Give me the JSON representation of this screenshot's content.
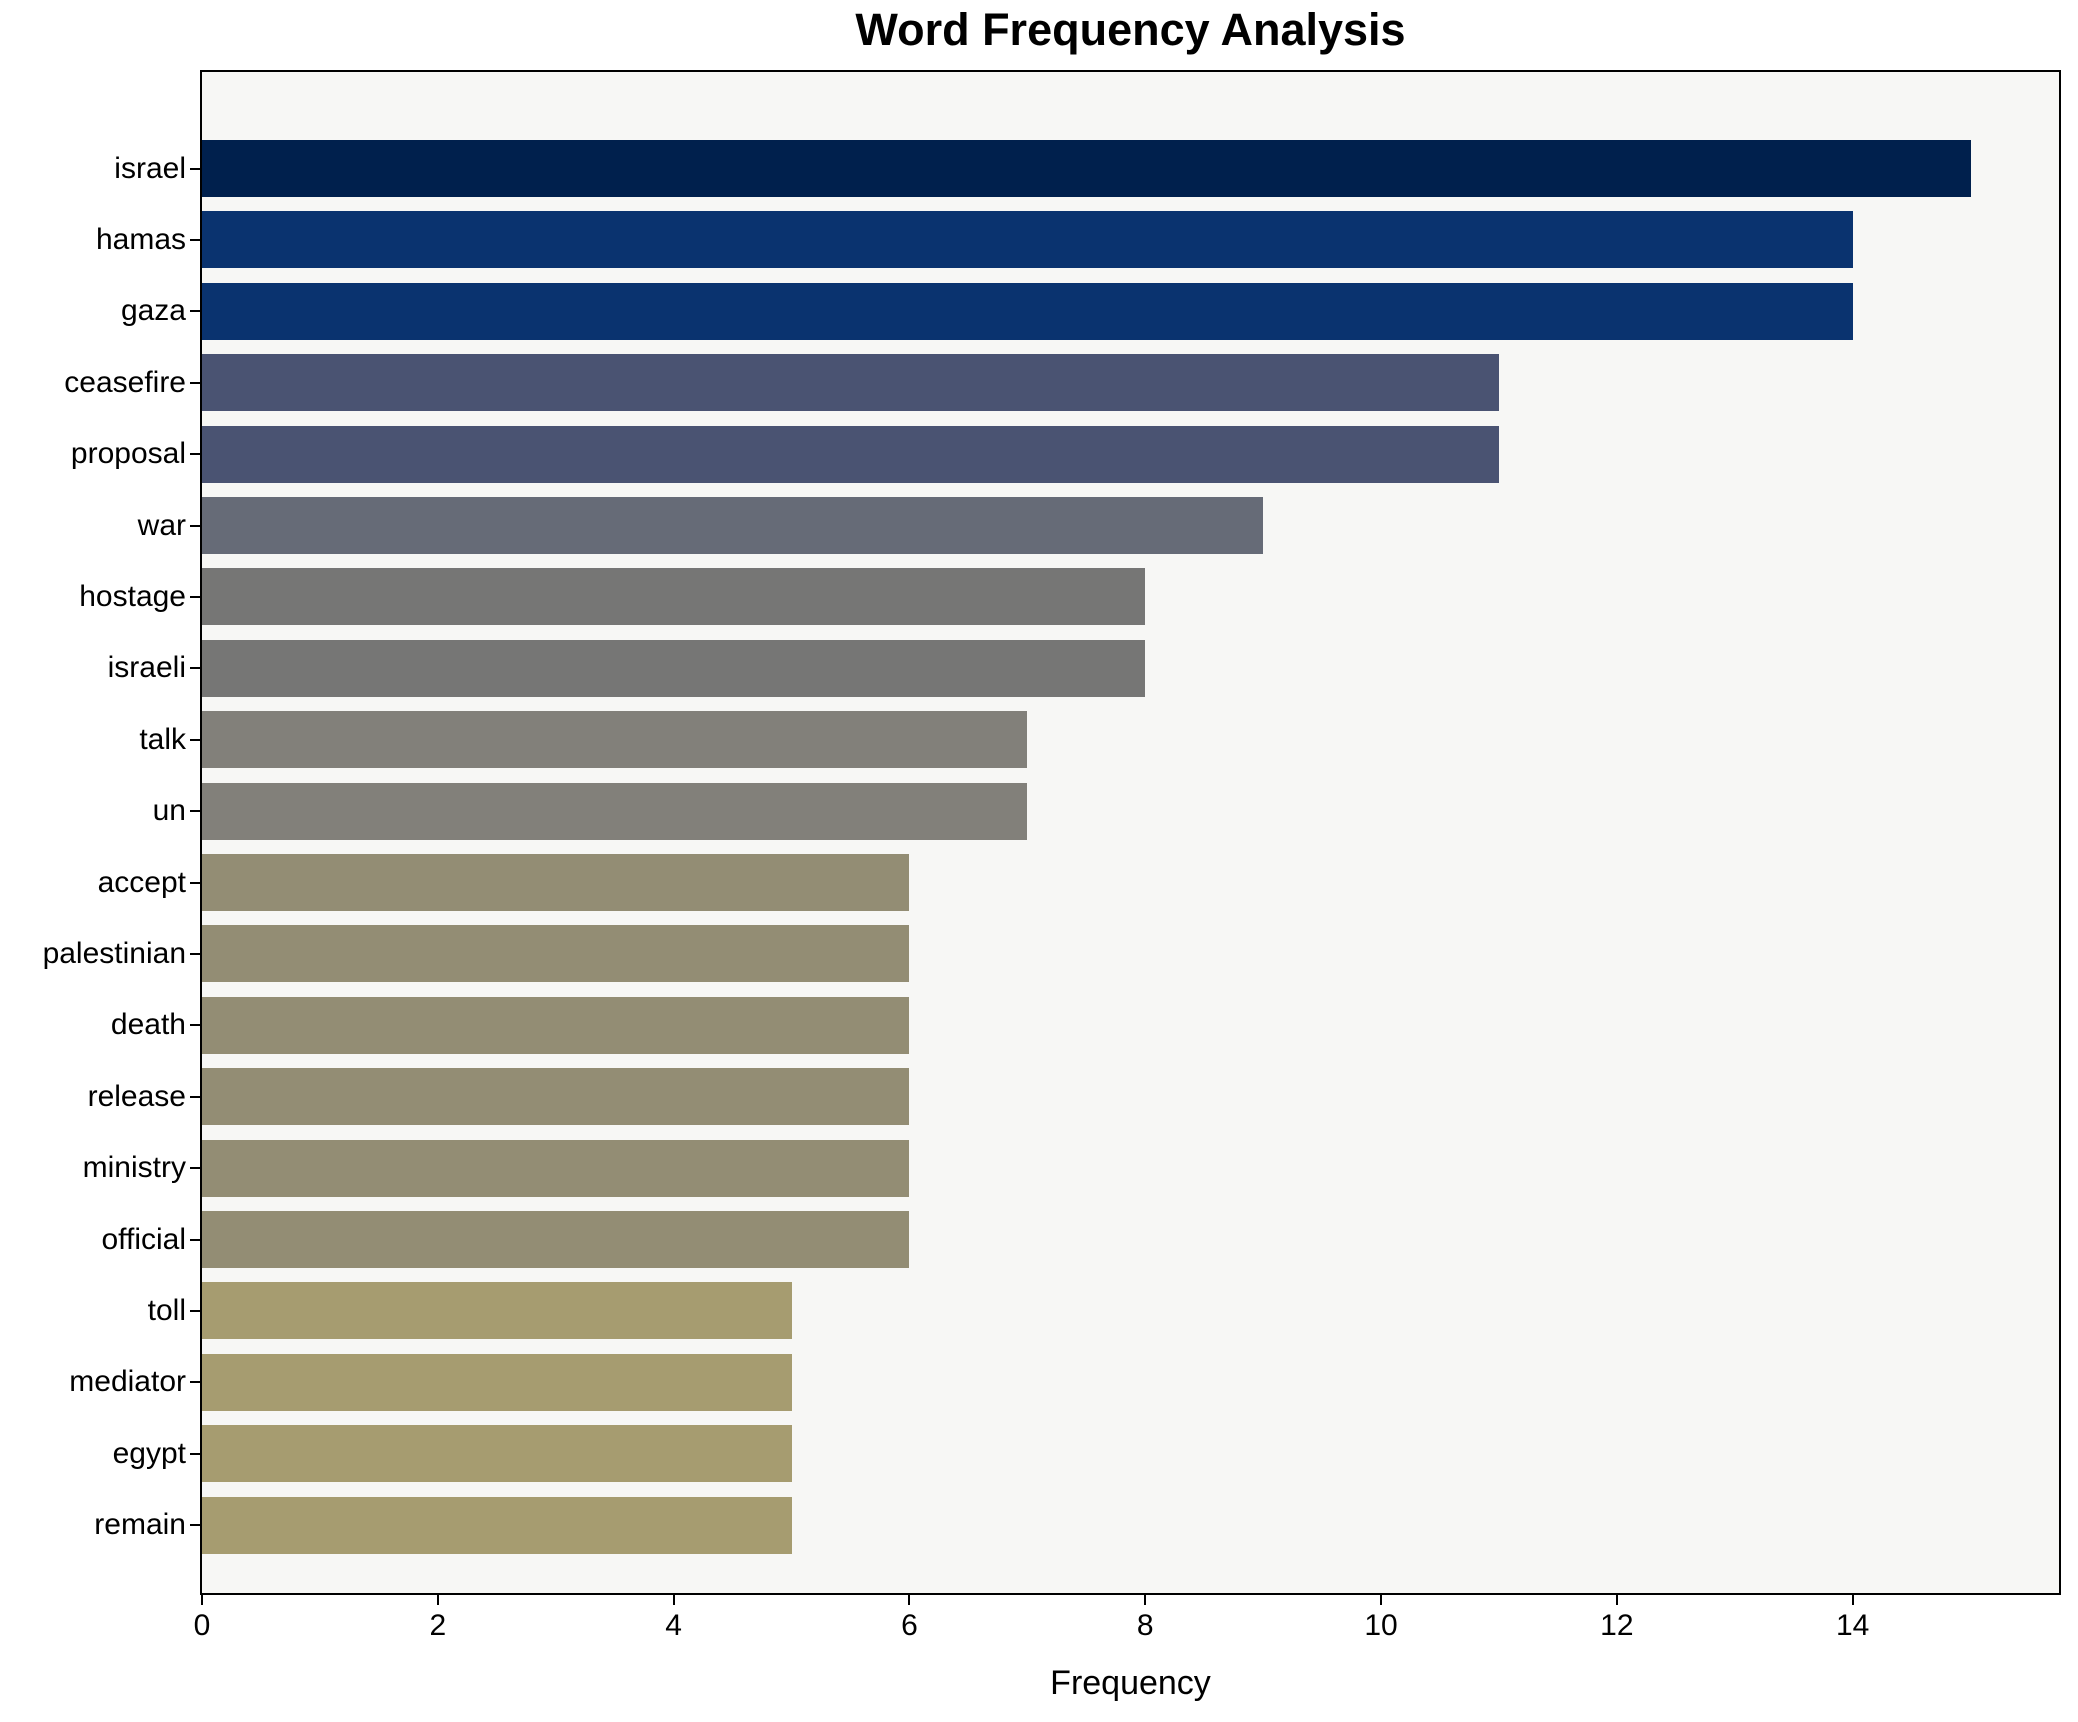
{
  "chart_data": {
    "type": "bar",
    "orientation": "horizontal",
    "title": "Word Frequency Analysis",
    "xlabel": "Frequency",
    "ylabel": "",
    "categories": [
      "israel",
      "hamas",
      "gaza",
      "ceasefire",
      "proposal",
      "war",
      "hostage",
      "israeli",
      "talk",
      "un",
      "accept",
      "palestinian",
      "death",
      "release",
      "ministry",
      "official",
      "toll",
      "mediator",
      "egypt",
      "remain"
    ],
    "values": [
      15,
      14,
      14,
      11,
      11,
      9,
      8,
      8,
      7,
      7,
      6,
      6,
      6,
      6,
      6,
      6,
      5,
      5,
      5,
      5
    ],
    "bar_colors": [
      "#00204d",
      "#0a336f",
      "#0a336f",
      "#4a5372",
      "#4a5372",
      "#666b77",
      "#767675",
      "#767675",
      "#82807a",
      "#82807a",
      "#938d74",
      "#938d74",
      "#938d74",
      "#938d74",
      "#938d74",
      "#938d74",
      "#a69c70",
      "#a69c70",
      "#a69c70",
      "#a69c70"
    ],
    "xlim": [
      0,
      15.75
    ],
    "xticks": [
      "0",
      "2",
      "4",
      "6",
      "8",
      "10",
      "12",
      "14"
    ],
    "xtick_values": [
      0,
      2,
      4,
      6,
      8,
      10,
      12,
      14
    ],
    "grid": false,
    "legend_position": "none",
    "plot_background": "#f7f7f5",
    "figure_background": "#ffffff",
    "axis_color": "#000000"
  }
}
